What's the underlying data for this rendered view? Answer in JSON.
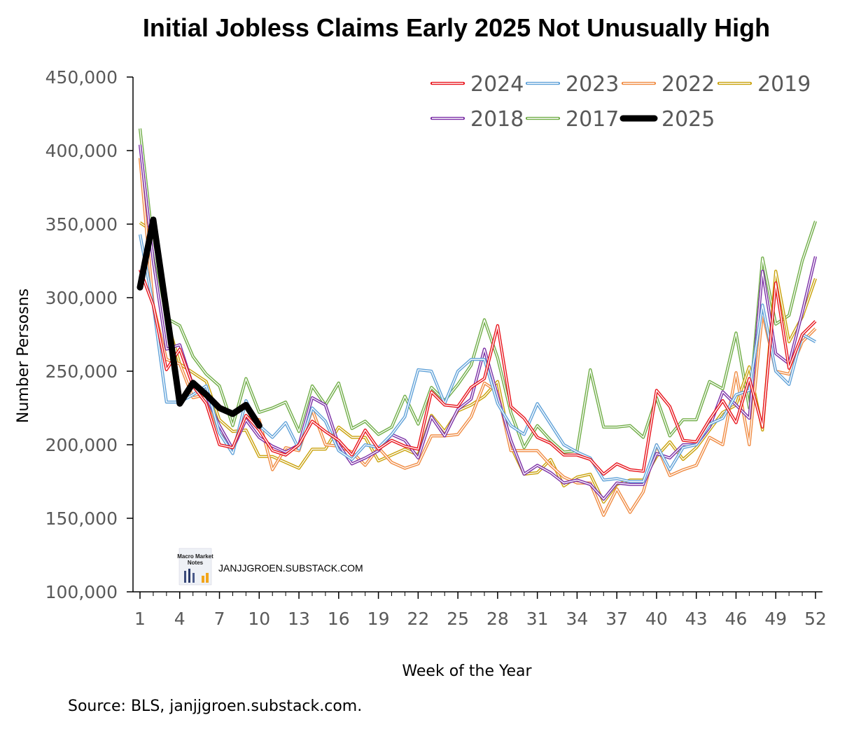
{
  "chart_data": {
    "type": "line",
    "title": "Initial Jobless Claims Early 2025 Not Unusually High",
    "xlabel": "Week of the Year",
    "ylabel": "Number Persosns",
    "source": "Source: BLS, janjjgroen.substack.com.",
    "watermark": {
      "text": "JANJJGROEN.SUBSTACK.COM",
      "logo_lines": [
        "Macro Market",
        "Notes"
      ]
    },
    "xlim": [
      1,
      52
    ],
    "ylim": [
      100000,
      450000
    ],
    "x_ticks": [
      1,
      4,
      7,
      10,
      13,
      16,
      19,
      22,
      25,
      28,
      31,
      34,
      37,
      40,
      43,
      46,
      49,
      52
    ],
    "y_ticks": [
      {
        "value": 100000,
        "label": "100,000"
      },
      {
        "value": 150000,
        "label": "150,000"
      },
      {
        "value": 200000,
        "label": "200,000"
      },
      {
        "value": 250000,
        "label": "250,000"
      },
      {
        "value": 300000,
        "label": "300,000"
      },
      {
        "value": 350000,
        "label": "350,000"
      },
      {
        "value": 400000,
        "label": "400,000"
      },
      {
        "value": 450000,
        "label": "450,000"
      }
    ],
    "grid": false,
    "legend_position": "top-right",
    "series": [
      {
        "name": "2024",
        "color": "#e8141c",
        "style": "double",
        "values": [
          319000,
          295000,
          251000,
          265000,
          240000,
          228000,
          200000,
          198000,
          220000,
          210000,
          196000,
          193000,
          200000,
          216000,
          209000,
          203000,
          193000,
          210000,
          197000,
          203000,
          199000,
          197000,
          236000,
          227000,
          226000,
          239000,
          245000,
          281000,
          226000,
          218000,
          205000,
          201000,
          193000,
          193000,
          190000,
          180000,
          187000,
          183000,
          182000,
          237000,
          226000,
          203000,
          202000,
          217000,
          230000,
          215000,
          245000,
          212000,
          310000,
          252000,
          275000,
          284000
        ]
      },
      {
        "name": "2023",
        "color": "#5fa1d8",
        "style": "double",
        "values": [
          343000,
          295000,
          229000,
          229000,
          234000,
          240000,
          208000,
          194000,
          230000,
          213000,
          205000,
          215000,
          197000,
          225000,
          216000,
          196000,
          190000,
          200000,
          198000,
          207000,
          219000,
          251000,
          250000,
          228000,
          250000,
          258000,
          258000,
          228000,
          213000,
          207000,
          228000,
          214000,
          200000,
          195000,
          191000,
          176000,
          177000,
          175000,
          175000,
          200000,
          183000,
          198000,
          200000,
          214000,
          218000,
          234000,
          237000,
          295000,
          250000,
          241000,
          275000,
          270000
        ]
      },
      {
        "name": "2022",
        "color": "#f08a40",
        "style": "double",
        "values": [
          395000,
          295000,
          258000,
          255000,
          232000,
          234000,
          208000,
          197000,
          219000,
          217000,
          183000,
          198000,
          196000,
          224000,
          200000,
          199000,
          195000,
          186000,
          198000,
          188000,
          184000,
          187000,
          206000,
          206000,
          207000,
          219000,
          242000,
          236000,
          196000,
          196000,
          196000,
          186000,
          178000,
          174000,
          174000,
          152000,
          170000,
          154000,
          168000,
          200000,
          179000,
          183000,
          186000,
          205000,
          200000,
          249000,
          200000,
          290000,
          250000,
          248000,
          270000,
          279000
        ]
      },
      {
        "name": "2019",
        "color": "#c9a10a",
        "style": "double",
        "values": [
          351000,
          345000,
          286000,
          255000,
          249000,
          243000,
          217000,
          209000,
          210000,
          192000,
          192000,
          188000,
          184000,
          197000,
          197000,
          212000,
          205000,
          205000,
          189000,
          193000,
          197000,
          193000,
          220000,
          209000,
          223000,
          227000,
          233000,
          243000,
          199000,
          180000,
          181000,
          190000,
          172000,
          178000,
          180000,
          161000,
          173000,
          176000,
          176000,
          192000,
          202000,
          190000,
          198000,
          210000,
          222000,
          227000,
          253000,
          210000,
          318000,
          270000,
          287000,
          313000
        ]
      },
      {
        "name": "2018",
        "color": "#7b2fa6",
        "style": "double",
        "values": [
          404000,
          325000,
          265000,
          268000,
          240000,
          233000,
          213000,
          197000,
          217000,
          205000,
          199000,
          195000,
          200000,
          232000,
          227000,
          200000,
          187000,
          191000,
          196000,
          207000,
          203000,
          191000,
          219000,
          206000,
          224000,
          231000,
          265000,
          233000,
          203000,
          180000,
          186000,
          181000,
          174000,
          176000,
          173000,
          163000,
          174000,
          173000,
          173000,
          194000,
          191000,
          200000,
          200000,
          212000,
          236000,
          227000,
          218000,
          318000,
          262000,
          255000,
          290000,
          328000
        ]
      },
      {
        "name": "2017",
        "color": "#70ad47",
        "style": "double",
        "values": [
          415000,
          335000,
          286000,
          281000,
          260000,
          248000,
          240000,
          213000,
          245000,
          222000,
          225000,
          229000,
          209000,
          240000,
          227000,
          242000,
          211000,
          216000,
          207000,
          212000,
          233000,
          214000,
          239000,
          230000,
          241000,
          254000,
          285000,
          259000,
          222000,
          198000,
          213000,
          203000,
          195000,
          196000,
          251000,
          212000,
          212000,
          213000,
          205000,
          232000,
          206000,
          217000,
          217000,
          243000,
          238000,
          276000,
          225000,
          327000,
          282000,
          288000,
          325000,
          352000
        ]
      },
      {
        "name": "2025",
        "color": "#000000",
        "style": "bold",
        "values": [
          307000,
          353000,
          291000,
          228000,
          242000,
          234000,
          225000,
          221000,
          227000,
          213000
        ]
      }
    ]
  }
}
